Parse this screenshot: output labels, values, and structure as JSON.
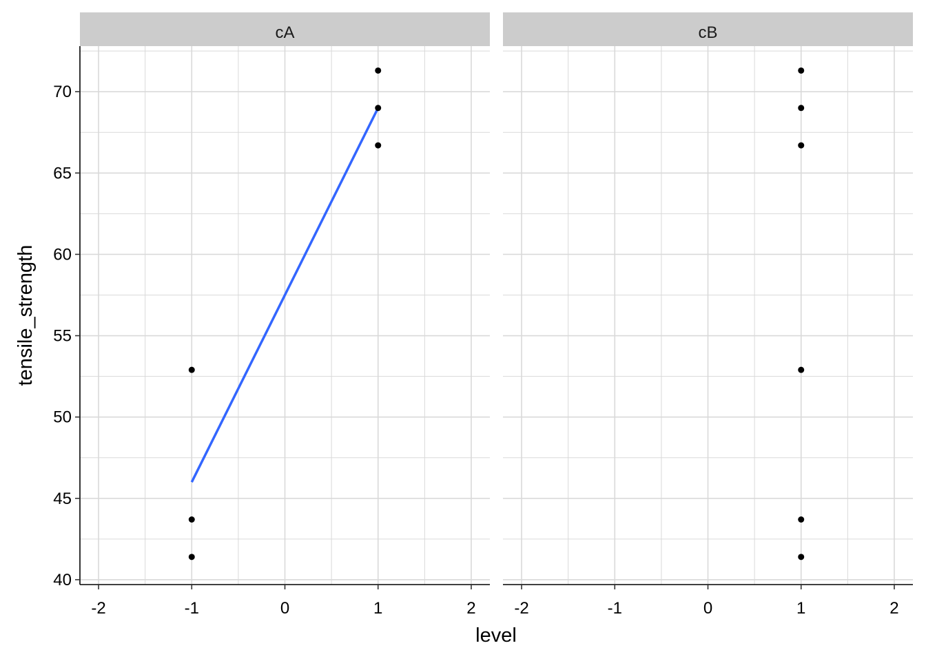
{
  "chart_data": {
    "type": "scatter",
    "xlabel": "level",
    "ylabel": "tensile_strength",
    "xlim": [
      -2.2,
      2.2
    ],
    "ylim": [
      39.7,
      72.8
    ],
    "x_ticks": [
      -2,
      -1,
      0,
      1,
      2
    ],
    "x_tick_labels": [
      "-2",
      "-1",
      "0",
      "1",
      "2"
    ],
    "y_ticks": [
      40,
      45,
      50,
      55,
      60,
      65,
      70
    ],
    "y_tick_labels": [
      "40",
      "45",
      "50",
      "55",
      "60",
      "65",
      "70"
    ],
    "grid": true,
    "colors": {
      "points": "#000000",
      "fit_line": "#3366FF",
      "grid": "#d9d9d9",
      "strip": "#cccccc"
    },
    "facets": [
      {
        "label": "cA",
        "points": [
          {
            "x": -1,
            "y": 52.9
          },
          {
            "x": -1,
            "y": 43.7
          },
          {
            "x": -1,
            "y": 41.4
          },
          {
            "x": 1,
            "y": 71.3
          },
          {
            "x": 1,
            "y": 69.0
          },
          {
            "x": 1,
            "y": 66.7
          }
        ],
        "fit_line": {
          "x": [
            -1,
            1
          ],
          "y": [
            46.0,
            69.0
          ]
        }
      },
      {
        "label": "cB",
        "points": [
          {
            "x": 1,
            "y": 71.3
          },
          {
            "x": 1,
            "y": 69.0
          },
          {
            "x": 1,
            "y": 66.7
          },
          {
            "x": 1,
            "y": 52.9
          },
          {
            "x": 1,
            "y": 43.7
          },
          {
            "x": 1,
            "y": 41.4
          }
        ]
      }
    ]
  }
}
